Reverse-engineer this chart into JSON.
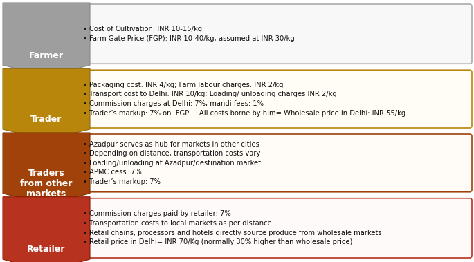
{
  "stages": [
    {
      "label": "Farmer",
      "chevron_color": "#9e9e9e",
      "chevron_edge": "#888888",
      "box_face": "#f8f8f8",
      "box_edge": "#aaaaaa",
      "text": "• Cost of Cultivation: INR 10-15/kg\n• Farm Gate Price (FGP): INR 10-40/kg; assumed at INR 30/kg"
    },
    {
      "label": "Trader",
      "chevron_color": "#b8860b",
      "chevron_edge": "#8B6914",
      "box_face": "#fffdf5",
      "box_edge": "#b8860b",
      "text": "• Packaging cost: INR 4/kg; Farm labour charges: INR 2/kg\n• Transport cost to Delhi: INR 10/kg; Loading/ unloading charges INR 2/kg\n• Commission charges at Delhi: 7%, mandi fees: 1%\n• Trader’s markup: 7% on  FGP + All costs borne by him= Wholesale price in Delhi: INR 55/kg"
    },
    {
      "label": "Traders\nfrom other\nmarkets",
      "chevron_color": "#a0420a",
      "chevron_edge": "#7a3200",
      "box_face": "#fffcf8",
      "box_edge": "#a0420a",
      "text": "• Azadpur serves as hub for markets in other cities\n• Depending on distance, transportation costs vary\n• Loading/unloading at Azadpur/destination market\n• APMC cess: 7%\n• Trader’s markup: 7%"
    },
    {
      "label": "Retailer",
      "chevron_color": "#b83220",
      "chevron_edge": "#8B1a00",
      "box_face": "#fffafa",
      "box_edge": "#b83220",
      "text": "• Commission charges paid by retailer: 7%\n• Transportation costs to local markets as per distance\n• Retail chains, processors and hotels directly source produce from wholesale markets\n• Retail price in Delhi= INR 70/Kg (normally 30% higher than wholesale price)"
    }
  ],
  "bg_color": "#ffffff",
  "text_fontsize": 7.2,
  "label_fontsize": 9.0
}
